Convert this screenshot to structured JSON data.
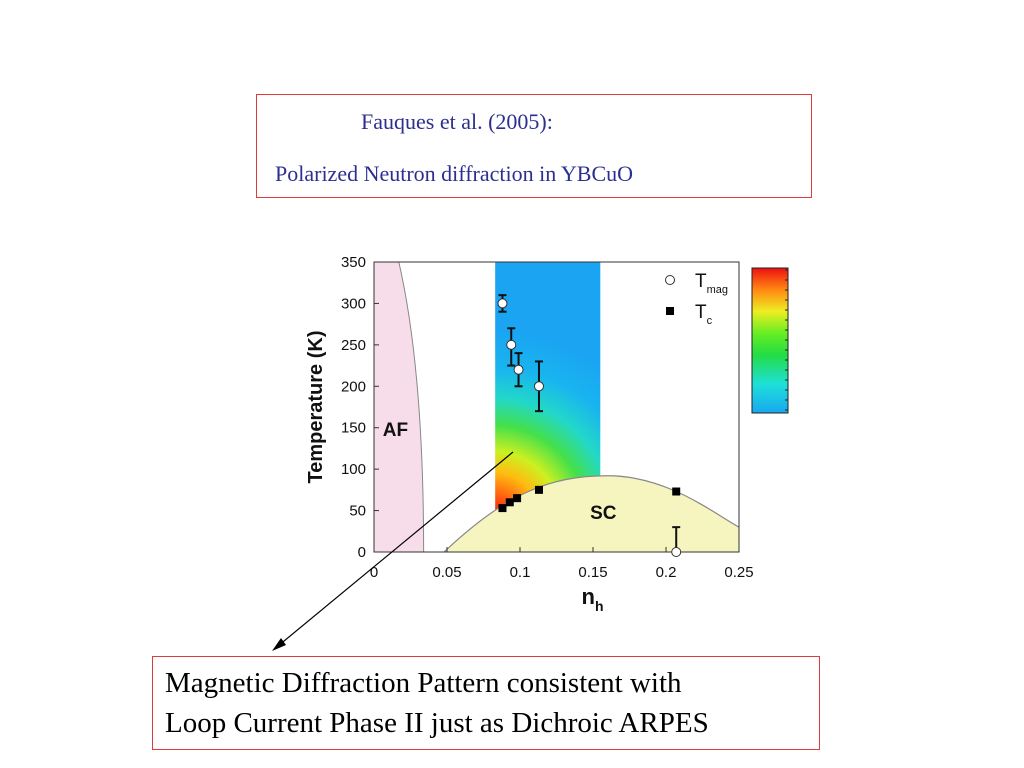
{
  "header": {
    "line1": "Fauques et al. (2005):",
    "line2": "Polarized Neutron diffraction in YBCuO"
  },
  "caption": {
    "line1": "Magnetic Diffraction Pattern consistent with",
    "line2": "Loop Current Phase II just as Dichroic ARPES"
  },
  "colors": {
    "text_blue": "#2b2f8f",
    "box_border": "#e03a3a",
    "af_region": "#f6dde9",
    "sc_region": "#f6f4bf"
  },
  "chart_data": {
    "type": "scatter",
    "xlabel": "n",
    "xlabel_sub": "h",
    "ylabel": "Temperature (K)",
    "xlim": [
      0,
      0.25
    ],
    "ylim": [
      0,
      350
    ],
    "xticks": [
      0,
      0.05,
      0.1,
      0.15,
      0.2,
      0.25
    ],
    "xtick_labels": [
      "0",
      "0.05",
      "0.1",
      "0.15",
      "0.2",
      "0.25"
    ],
    "yticks": [
      0,
      50,
      100,
      150,
      200,
      250,
      300,
      350
    ],
    "ytick_labels": [
      "0",
      "50",
      "100",
      "150",
      "200",
      "250",
      "300",
      "350"
    ],
    "grid": false,
    "legend_position": "top-right",
    "legend": [
      {
        "label": "T",
        "sub": "mag",
        "marker": "open-circle"
      },
      {
        "label": "T",
        "sub": "c",
        "marker": "filled-square"
      }
    ],
    "regions": [
      {
        "label": "AF"
      },
      {
        "label": "SC"
      }
    ],
    "series": [
      {
        "marker": "open-circle",
        "x": [
          0.088,
          0.094,
          0.099,
          0.113,
          0.207
        ],
        "y": [
          300,
          250,
          220,
          200,
          0
        ],
        "yerr_low": [
          10,
          25,
          20,
          30,
          0
        ],
        "yerr_high": [
          10,
          20,
          20,
          30,
          30
        ]
      },
      {
        "marker": "filled-square",
        "x": [
          0.088,
          0.093,
          0.098,
          0.113,
          0.207
        ],
        "y": [
          53,
          60,
          65,
          75,
          73
        ]
      }
    ],
    "sc_dome_peak": {
      "x": 0.16,
      "y": 92
    },
    "colored_band": {
      "x_range": [
        0.083,
        0.155
      ],
      "y_range": [
        0,
        350
      ]
    }
  }
}
